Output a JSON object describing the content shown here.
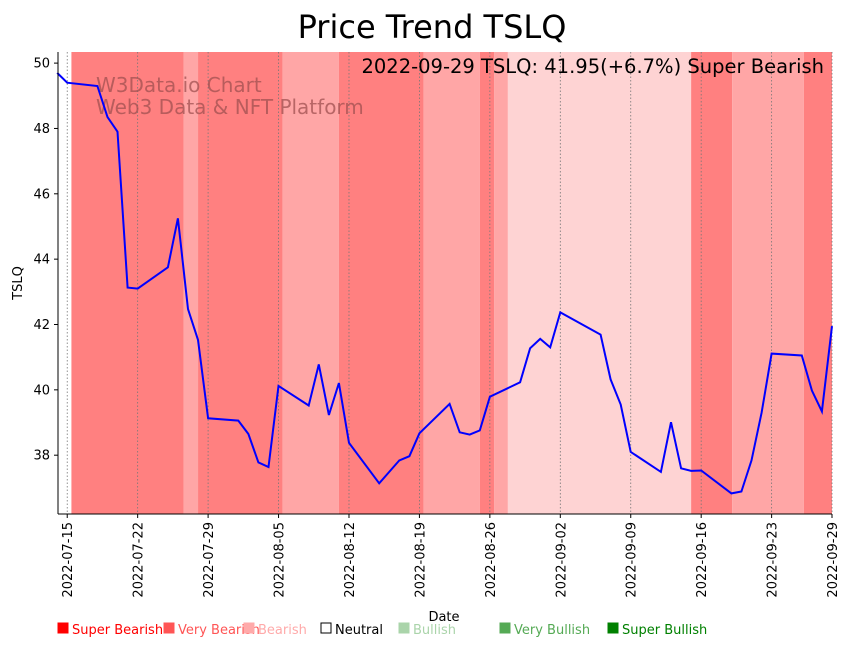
{
  "chart_data": {
    "type": "line",
    "title": "Price Trend TSLQ",
    "annotation": "2022-09-29 TSLQ: 41.95(+6.7%) Super Bearish",
    "watermark": [
      "W3Data.io Chart",
      "Web3 Data & NFT Platform"
    ],
    "xlabel": "Date",
    "ylabel": "TSLQ",
    "xlim": [
      "2022-07-14T02:00",
      "2022-09-29T00:00"
    ],
    "ylim": [
      36.2,
      50.34
    ],
    "yticks": [
      38,
      40,
      42,
      44,
      46,
      48,
      50
    ],
    "xticks": [
      "2022-07-15",
      "2022-07-22",
      "2022-07-29",
      "2022-08-05",
      "2022-08-12",
      "2022-08-19",
      "2022-08-26",
      "2022-09-02",
      "2022-09-09",
      "2022-09-16",
      "2022-09-23",
      "2022-09-29"
    ],
    "grid": "vertical dotted at x ticks",
    "series": [
      {
        "name": "TSLQ",
        "color": "#0000ff",
        "x": [
          "2022-07-14",
          "2022-07-15",
          "2022-07-18",
          "2022-07-19",
          "2022-07-20",
          "2022-07-21",
          "2022-07-22",
          "2022-07-25",
          "2022-07-26",
          "2022-07-27",
          "2022-07-28",
          "2022-07-29",
          "2022-08-01",
          "2022-08-02",
          "2022-08-03",
          "2022-08-04",
          "2022-08-05",
          "2022-08-08",
          "2022-08-09",
          "2022-08-10",
          "2022-08-11",
          "2022-08-12",
          "2022-08-15",
          "2022-08-17",
          "2022-08-18",
          "2022-08-19",
          "2022-08-22",
          "2022-08-23",
          "2022-08-24",
          "2022-08-25",
          "2022-08-26",
          "2022-08-29",
          "2022-08-30",
          "2022-08-31",
          "2022-09-01",
          "2022-09-02",
          "2022-09-06",
          "2022-09-07",
          "2022-09-08",
          "2022-09-09",
          "2022-09-12",
          "2022-09-13",
          "2022-09-14",
          "2022-09-15",
          "2022-09-16",
          "2022-09-19",
          "2022-09-20",
          "2022-09-21",
          "2022-09-22",
          "2022-09-23",
          "2022-09-26",
          "2022-09-27",
          "2022-09-28",
          "2022-09-29"
        ],
        "y": [
          49.7,
          49.4,
          49.3,
          48.35,
          47.9,
          43.13,
          43.1,
          43.75,
          45.25,
          42.47,
          41.53,
          39.13,
          39.06,
          38.65,
          37.78,
          37.64,
          40.12,
          39.52,
          40.78,
          39.23,
          40.21,
          38.38,
          37.14,
          37.84,
          37.97,
          38.67,
          39.57,
          38.7,
          38.63,
          38.76,
          39.79,
          40.23,
          41.27,
          41.56,
          41.3,
          42.37,
          41.69,
          40.32,
          39.55,
          38.1,
          37.49,
          39.01,
          37.6,
          37.52,
          37.53,
          36.83,
          36.89,
          37.84,
          39.3,
          41.11,
          41.05,
          39.98,
          39.34,
          41.95
        ]
      }
    ],
    "bands": [
      {
        "start": "2022-07-15T10:00",
        "end": "2022-07-26T14:00",
        "state": "Super Bearish",
        "color": "#ff8080"
      },
      {
        "start": "2022-07-26T14:00",
        "end": "2022-07-28T00:00",
        "state": "Very Bearish",
        "color": "#ffa6a6"
      },
      {
        "start": "2022-07-28T00:00",
        "end": "2022-08-05T10:00",
        "state": "Super Bearish",
        "color": "#ff8080"
      },
      {
        "start": "2022-08-05T10:00",
        "end": "2022-08-11T00:00",
        "state": "Very Bearish",
        "color": "#ffa6a6"
      },
      {
        "start": "2022-08-11T00:00",
        "end": "2022-08-19T10:00",
        "state": "Super Bearish",
        "color": "#ff8080"
      },
      {
        "start": "2022-08-19T10:00",
        "end": "2022-08-25T00:00",
        "state": "Very Bearish",
        "color": "#ffa6a6"
      },
      {
        "start": "2022-08-25T00:00",
        "end": "2022-08-26T10:00",
        "state": "Super Bearish",
        "color": "#ff8080"
      },
      {
        "start": "2022-08-26T10:00",
        "end": "2022-08-27T19:00",
        "state": "Very Bearish",
        "color": "#ffa6a6"
      },
      {
        "start": "2022-08-27T19:00",
        "end": "2022-09-15T00:00",
        "state": "Bearish",
        "color": "#fed3d3"
      },
      {
        "start": "2022-09-15T00:00",
        "end": "2022-09-19T02:00",
        "state": "Super Bearish",
        "color": "#ff8080"
      },
      {
        "start": "2022-09-19T02:00",
        "end": "2022-09-26T05:00",
        "state": "Very Bearish",
        "color": "#ffa6a6"
      },
      {
        "start": "2022-09-26T05:00",
        "end": "2022-09-29T00:00",
        "state": "Super Bearish",
        "color": "#ff8080"
      }
    ],
    "legend": {
      "placement": "bottom",
      "items": [
        {
          "label": "Super Bearish",
          "color": "#ff0000"
        },
        {
          "label": "Very Bearish",
          "color": "#ff5555"
        },
        {
          "label": "Bearish",
          "color": "#ffaaaa"
        },
        {
          "label": "Neutral",
          "color": "#ffffff"
        },
        {
          "label": "Bullish",
          "color": "#aad4aa"
        },
        {
          "label": "Very Bullish",
          "color": "#55aa55"
        },
        {
          "label": "Super Bullish",
          "color": "#008000"
        }
      ]
    }
  }
}
